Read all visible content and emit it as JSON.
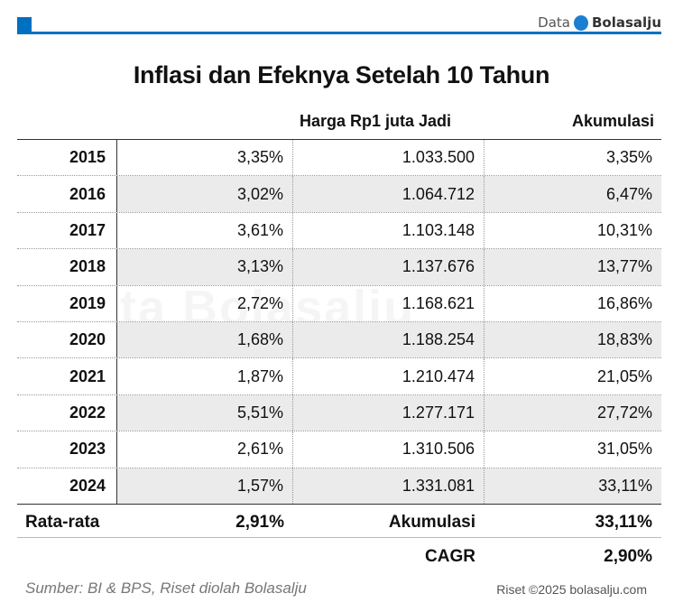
{
  "brand": {
    "data": "Data",
    "name": "Bolasalju",
    "accent": "#0070c0"
  },
  "watermark": "Data Bolasalju",
  "chart_data": {
    "type": "table",
    "title": "Inflasi dan Efeknya Setelah 10 Tahun",
    "columns": [
      "",
      "",
      "Harga Rp1 juta Jadi",
      "Akumulasi"
    ],
    "rows": [
      [
        "2015",
        "3,35%",
        "1.033.500",
        "3,35%"
      ],
      [
        "2016",
        "3,02%",
        "1.064.712",
        "6,47%"
      ],
      [
        "2017",
        "3,61%",
        "1.103.148",
        "10,31%"
      ],
      [
        "2018",
        "3,13%",
        "1.137.676",
        "13,77%"
      ],
      [
        "2019",
        "2,72%",
        "1.168.621",
        "16,86%"
      ],
      [
        "2020",
        "1,68%",
        "1.188.254",
        "18,83%"
      ],
      [
        "2021",
        "1,87%",
        "1.210.474",
        "21,05%"
      ],
      [
        "2022",
        "5,51%",
        "1.277.171",
        "27,72%"
      ],
      [
        "2023",
        "2,61%",
        "1.310.506",
        "31,05%"
      ],
      [
        "2024",
        "1,57%",
        "1.331.081",
        "33,11%"
      ]
    ],
    "summary": {
      "avg_label": "Rata-rata",
      "avg_value": "2,91%",
      "acc_label": "Akumulasi",
      "acc_value": "33,11%",
      "cagr_label": "CAGR",
      "cagr_value": "2,90%"
    }
  },
  "footer": {
    "source": "Sumber: BI & BPS, Riset diolah Bolasalju",
    "copyright": "Riset ©2025 bolasalju.com"
  }
}
